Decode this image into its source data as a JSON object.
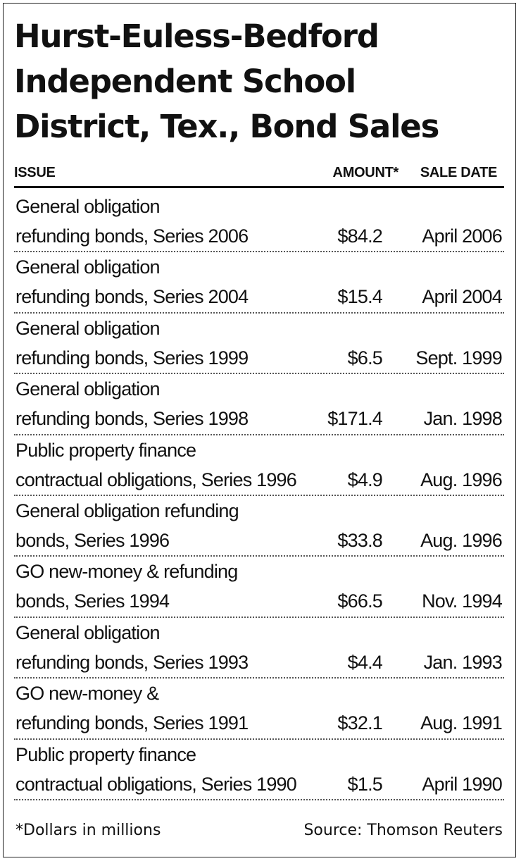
{
  "title": {
    "line1": "Hurst-Euless-Bedford",
    "line2": "Independent School",
    "line3": "District, Tex., Bond Sales"
  },
  "table": {
    "columns": [
      "ISSUE",
      "AMOUNT*",
      "SALE DATE"
    ],
    "rows": [
      {
        "issue_line1": "General obligation",
        "issue_line2": "refunding bonds, Series 2006",
        "amount": "$84.2",
        "sale_date": "April 2006"
      },
      {
        "issue_line1": "General obligation",
        "issue_line2": "refunding bonds, Series 2004",
        "amount": "$15.4",
        "sale_date": "April 2004"
      },
      {
        "issue_line1": "General obligation",
        "issue_line2": "refunding bonds, Series 1999",
        "amount": "$6.5",
        "sale_date": "Sept. 1999"
      },
      {
        "issue_line1": "General obligation",
        "issue_line2": "refunding bonds, Series 1998",
        "amount": "$171.4",
        "sale_date": "Jan. 1998"
      },
      {
        "issue_line1": "Public property finance",
        "issue_line2": "contractual obligations, Series 1996",
        "amount": "$4.9",
        "sale_date": "Aug. 1996"
      },
      {
        "issue_line1": "General obligation refunding",
        "issue_line2": "bonds, Series 1996",
        "amount": "$33.8",
        "sale_date": "Aug. 1996"
      },
      {
        "issue_line1": "GO new-money & refunding",
        "issue_line2": "bonds, Series 1994",
        "amount": "$66.5",
        "sale_date": "Nov. 1994"
      },
      {
        "issue_line1": "General obligation",
        "issue_line2": "refunding bonds, Series 1993",
        "amount": "$4.4",
        "sale_date": "Jan. 1993"
      },
      {
        "issue_line1": "GO new-money &",
        "issue_line2": "refunding bonds, Series 1991",
        "amount": "$32.1",
        "sale_date": "Aug. 1991"
      },
      {
        "issue_line1": "Public property finance",
        "issue_line2": "contractual obligations, Series 1990",
        "amount": "$1.5",
        "sale_date": "April 1990"
      }
    ]
  },
  "footer": {
    "note": "*Dollars in millions",
    "source": "Source: Thomson Reuters"
  }
}
